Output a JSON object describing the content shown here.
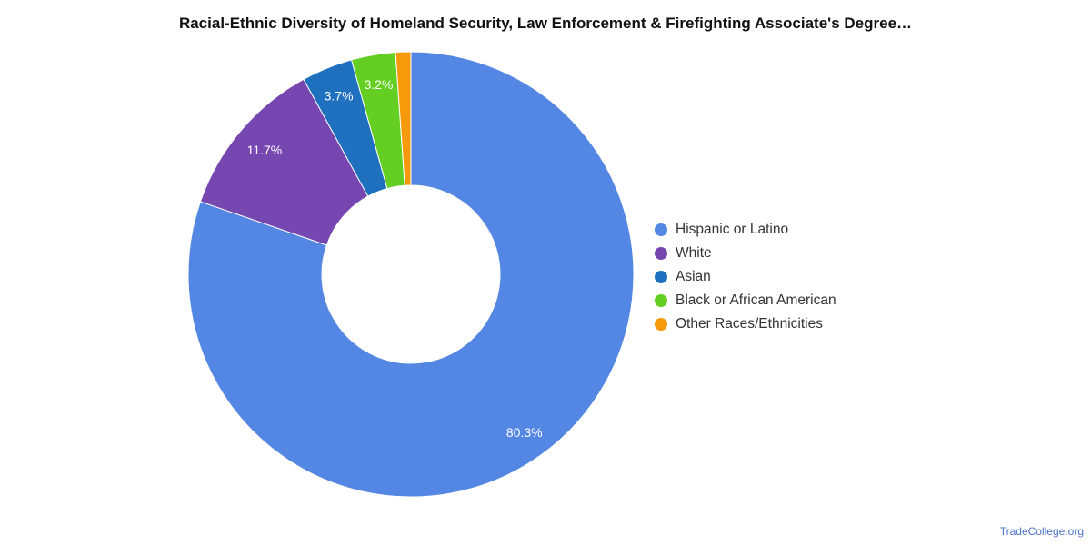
{
  "chart_data": {
    "type": "pie",
    "variant": "donut",
    "title": "Racial-Ethnic Diversity of Homeland Security, Law Enforcement & Firefighting Associate's Degree…",
    "legend_position": "right",
    "slices": [
      {
        "label": "Hispanic or Latino",
        "value": 80.3,
        "display": "80.3%",
        "color": "#5487e3"
      },
      {
        "label": "White",
        "value": 11.7,
        "display": "11.7%",
        "color": "#7647b0"
      },
      {
        "label": "Asian",
        "value": 3.7,
        "display": "3.7%",
        "color": "#1f70bf"
      },
      {
        "label": "Black or African American",
        "value": 3.2,
        "display": "3.2%",
        "color": "#64cf22"
      },
      {
        "label": "Other Races/Ethnicities",
        "value": 1.1,
        "display": "",
        "color": "#f59a0a"
      }
    ]
  },
  "watermark": "TradeCollege.org"
}
